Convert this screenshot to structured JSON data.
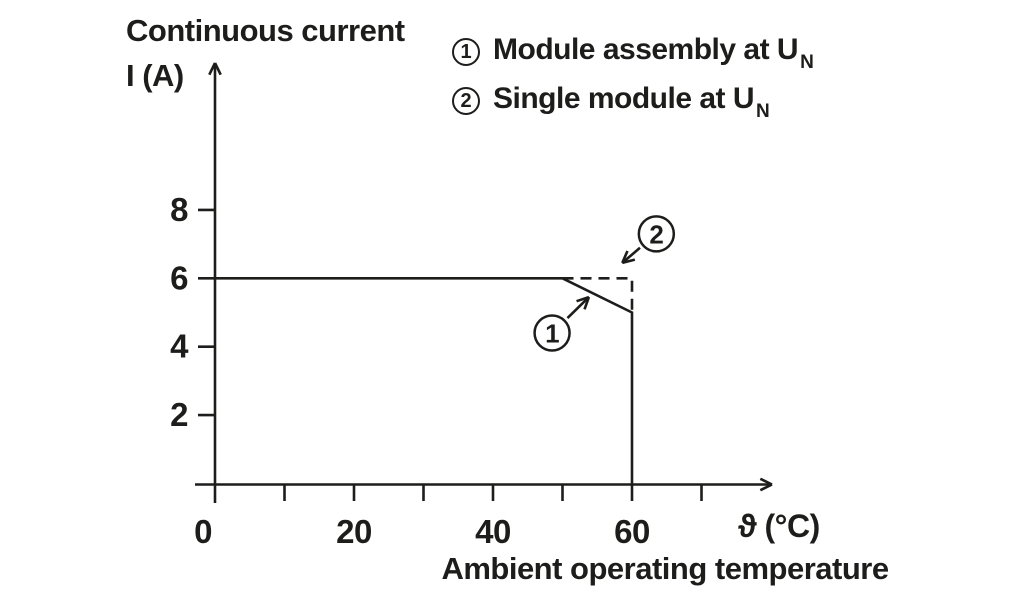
{
  "figure": {
    "y_axis_title_line1": "Continuous current",
    "y_axis_title_line2": "I (A)",
    "x_axis_unit": "ϑ (°C)",
    "x_axis_title": "Ambient operating temperature",
    "legend": {
      "items": [
        {
          "number": "1",
          "label": "Module assembly at U",
          "subscript": "N"
        },
        {
          "number": "2",
          "label": "Single module at U",
          "subscript": "N"
        }
      ]
    },
    "colors": {
      "ink": "#1d1d1b",
      "background": "#ffffff"
    }
  },
  "chart_data": {
    "type": "line",
    "title": "",
    "xlabel": "Ambient operating temperature ϑ (°C)",
    "ylabel": "Continuous current I (A)",
    "xlim": [
      0,
      78
    ],
    "ylim": [
      0,
      9.8
    ],
    "grid": false,
    "legend_position": "top-right",
    "x_ticks_labeled": [
      0,
      20,
      40,
      60
    ],
    "x_ticks_all": [
      10,
      20,
      30,
      40,
      50,
      60,
      70
    ],
    "y_ticks_labeled": [
      2,
      4,
      6,
      8
    ],
    "series": [
      {
        "name": "Module assembly at UN",
        "callout": "1",
        "line_style": "solid",
        "points": [
          [
            0,
            6
          ],
          [
            50,
            6
          ],
          [
            60,
            5
          ],
          [
            60,
            0
          ]
        ]
      },
      {
        "name": "Single module at UN",
        "callout": "2",
        "line_style": "dashed",
        "points": [
          [
            50,
            6
          ],
          [
            60,
            6
          ],
          [
            60,
            5
          ]
        ]
      }
    ],
    "annotations": [
      {
        "label": "1",
        "circle_at": [
          48.5,
          4.4
        ],
        "arrow_to": [
          53.8,
          5.45
        ]
      },
      {
        "label": "2",
        "circle_at": [
          63.5,
          7.3
        ],
        "arrow_to": [
          58.6,
          6.45
        ]
      }
    ]
  }
}
